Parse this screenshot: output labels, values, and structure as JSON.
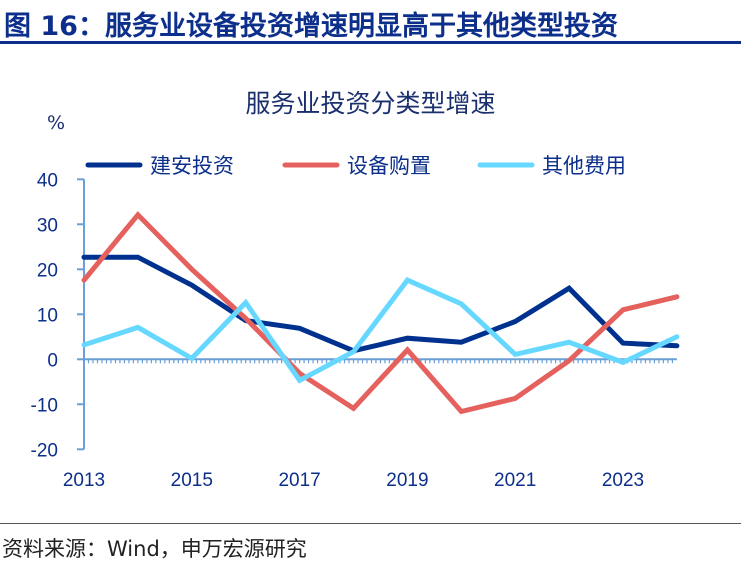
{
  "figure_title": "图 16：服务业设备投资增速明显高于其他类型投资",
  "source": "资料来源：Wind，申万宏源研究",
  "chart_data": {
    "type": "line",
    "title": "服务业投资分类型增速",
    "ylabel": "%",
    "xlabel": "",
    "x": [
      2013,
      2014,
      2015,
      2016,
      2017,
      2018,
      2019,
      2020,
      2021,
      2022,
      2023,
      2024
    ],
    "xticks": [
      "2013",
      "2015",
      "2017",
      "2019",
      "2021",
      "2023"
    ],
    "yticks": [
      "40",
      "30",
      "20",
      "10",
      "0",
      "-10",
      "-20"
    ],
    "ylim": [
      -20,
      40
    ],
    "grid": false,
    "legend_position": "top",
    "series": [
      {
        "name": "建安投资",
        "color": "#00318f",
        "values": [
          22.7,
          22.7,
          16.5,
          8.6,
          6.9,
          1.9,
          4.7,
          3.8,
          8.4,
          15.8,
          3.6,
          3.0
        ]
      },
      {
        "name": "设备购置",
        "color": "#e5615e",
        "values": [
          17.6,
          32.1,
          20.0,
          9.1,
          -3.1,
          -10.9,
          2.1,
          -11.6,
          -8.7,
          -0.3,
          11.0,
          13.9
        ]
      },
      {
        "name": "其他费用",
        "color": "#66d8ff",
        "values": [
          3.2,
          7.1,
          0.2,
          12.6,
          -4.7,
          1.7,
          17.6,
          12.3,
          1.1,
          3.8,
          -0.7,
          5.0
        ]
      }
    ]
  }
}
